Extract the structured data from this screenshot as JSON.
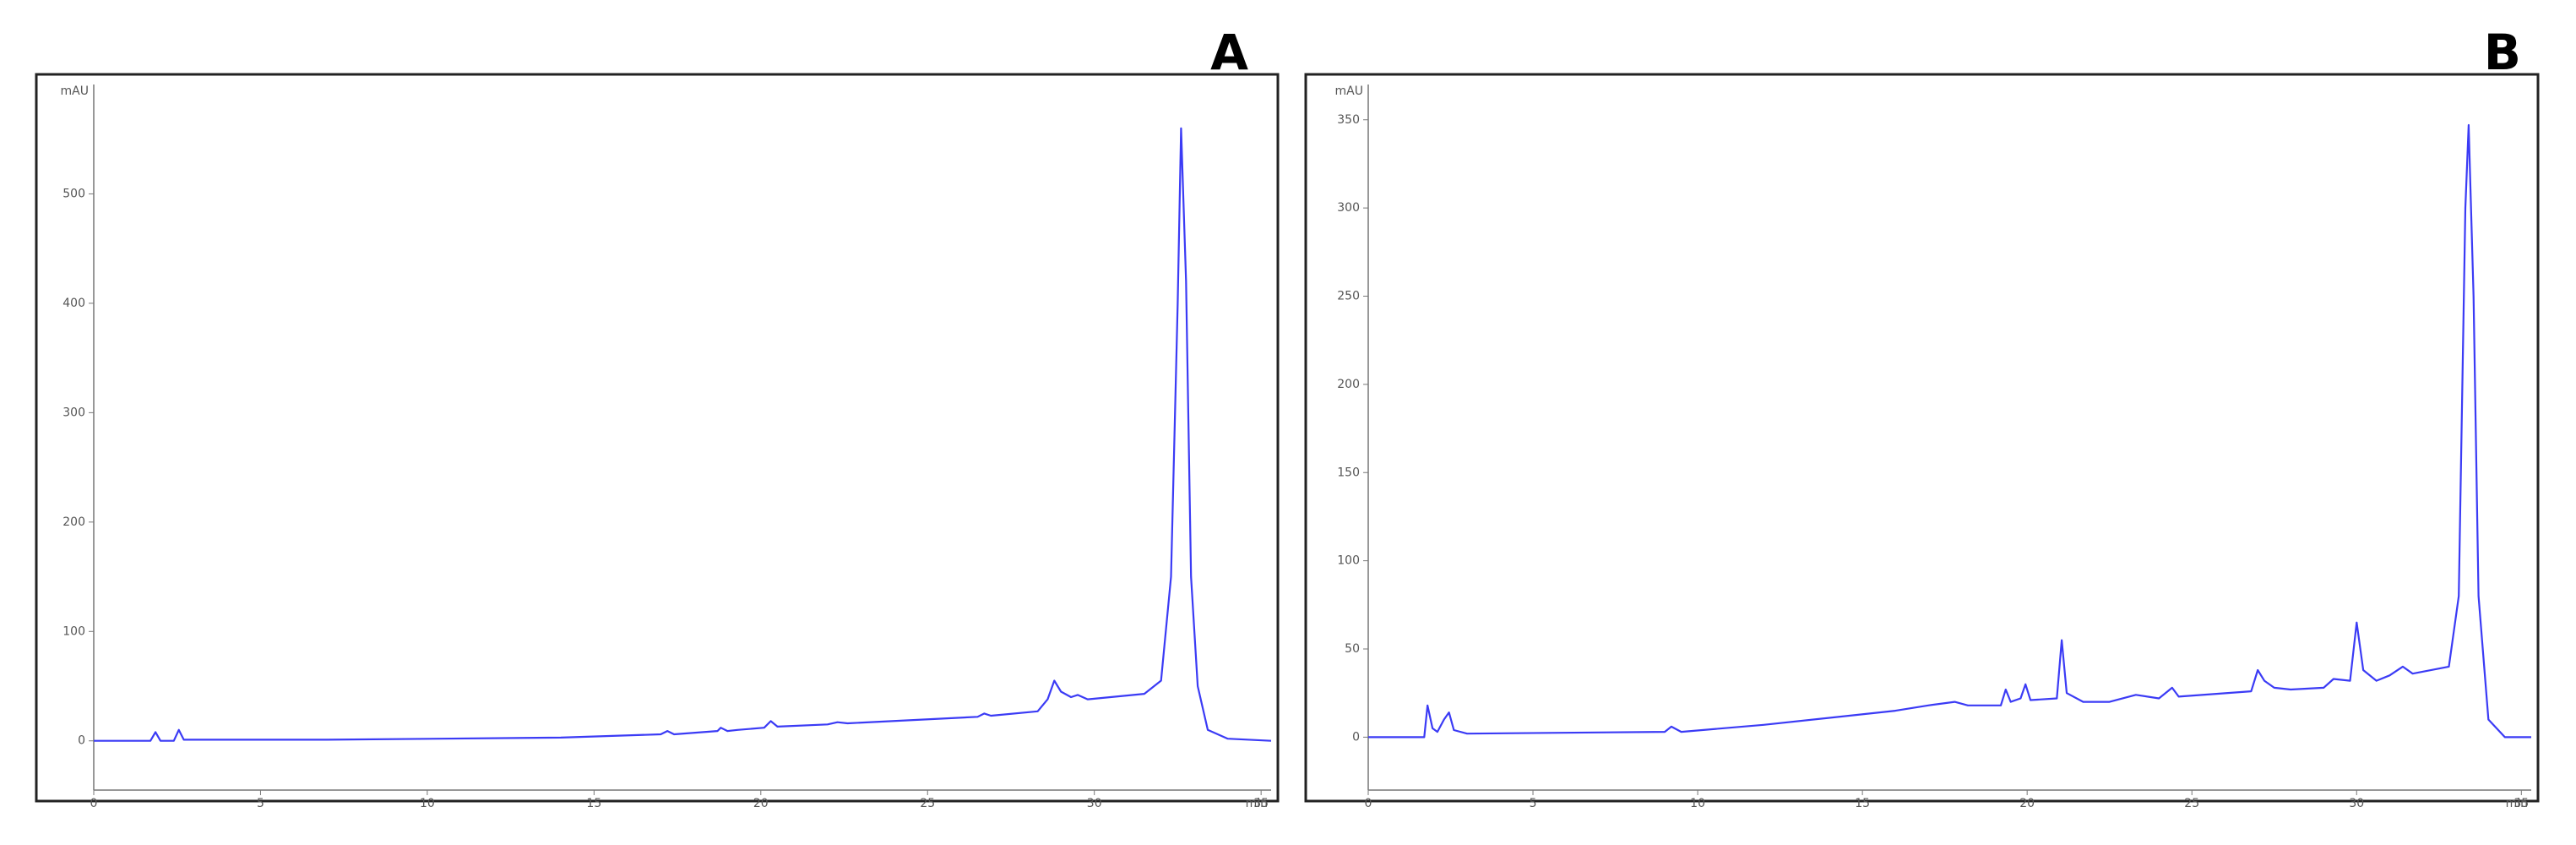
{
  "chart_data": [
    {
      "type": "line",
      "title": "A",
      "y_label": "mAU",
      "x_label": "min",
      "x": [
        0,
        1.7,
        1.85,
        2.0,
        2.4,
        2.55,
        2.7,
        7,
        14,
        17,
        17.2,
        17.4,
        18.7,
        18.8,
        19.0,
        19.3,
        20.1,
        20.3,
        20.5,
        22.0,
        22.3,
        22.6,
        26.5,
        26.7,
        26.9,
        28.3,
        28.6,
        28.8,
        29.0,
        29.3,
        29.5,
        29.8,
        31.5,
        32.0,
        32.3,
        32.5,
        32.6,
        32.75,
        32.9,
        33.1,
        33.4,
        34,
        35.3
      ],
      "series": [
        {
          "name": "A",
          "color": "#3b3bf5",
          "values": [
            0,
            0,
            8,
            0,
            0,
            10,
            1,
            1,
            3,
            6,
            9,
            6,
            9,
            12,
            9,
            10,
            12,
            18,
            13,
            15,
            17,
            16,
            22,
            25,
            23,
            27,
            38,
            55,
            45,
            40,
            42,
            38,
            43,
            55,
            150,
            400,
            560,
            420,
            150,
            50,
            10,
            2,
            0
          ]
        }
      ],
      "xlim": [
        0,
        35.3
      ],
      "ylim": [
        -45,
        600
      ],
      "xticks": [
        0,
        5,
        10,
        15,
        20,
        25,
        30,
        35
      ],
      "yticks": [
        0,
        100,
        200,
        300,
        400,
        500
      ]
    },
    {
      "type": "line",
      "title": "B",
      "y_label": "mAU",
      "x_label": "min",
      "x": [
        0,
        1.7,
        1.8,
        1.95,
        2.1,
        2.3,
        2.45,
        2.6,
        3,
        9,
        9.2,
        9.5,
        12,
        16,
        17.0,
        17.8,
        18.2,
        19.2,
        19.35,
        19.5,
        19.8,
        19.95,
        20.1,
        20.9,
        21.05,
        21.2,
        21.7,
        22.5,
        23.3,
        24.0,
        24.4,
        24.6,
        26.8,
        27.0,
        27.2,
        27.5,
        28,
        29.0,
        29.3,
        29.8,
        30.0,
        30.2,
        30.6,
        31.0,
        31.4,
        31.7,
        32.8,
        33.1,
        33.3,
        33.4,
        33.55,
        33.7,
        34.0,
        34.5,
        35.3
      ],
      "series": [
        {
          "name": "B",
          "color": "#3b3bf5",
          "values": [
            0,
            0,
            18,
            5,
            3,
            10,
            14,
            4,
            2,
            3,
            6,
            3,
            7,
            15,
            18,
            20,
            18,
            18,
            27,
            20,
            22,
            30,
            21,
            22,
            55,
            25,
            20,
            20,
            24,
            22,
            28,
            23,
            26,
            38,
            32,
            28,
            27,
            28,
            33,
            32,
            65,
            38,
            32,
            35,
            40,
            36,
            40,
            80,
            300,
            347,
            250,
            80,
            10,
            0,
            0
          ]
        }
      ],
      "xlim": [
        0,
        35.3
      ],
      "ylim": [
        -30,
        370
      ],
      "xticks": [
        0,
        5,
        10,
        15,
        20,
        25,
        30,
        35
      ],
      "yticks": [
        0,
        50,
        100,
        150,
        200,
        250,
        300,
        350
      ]
    }
  ]
}
